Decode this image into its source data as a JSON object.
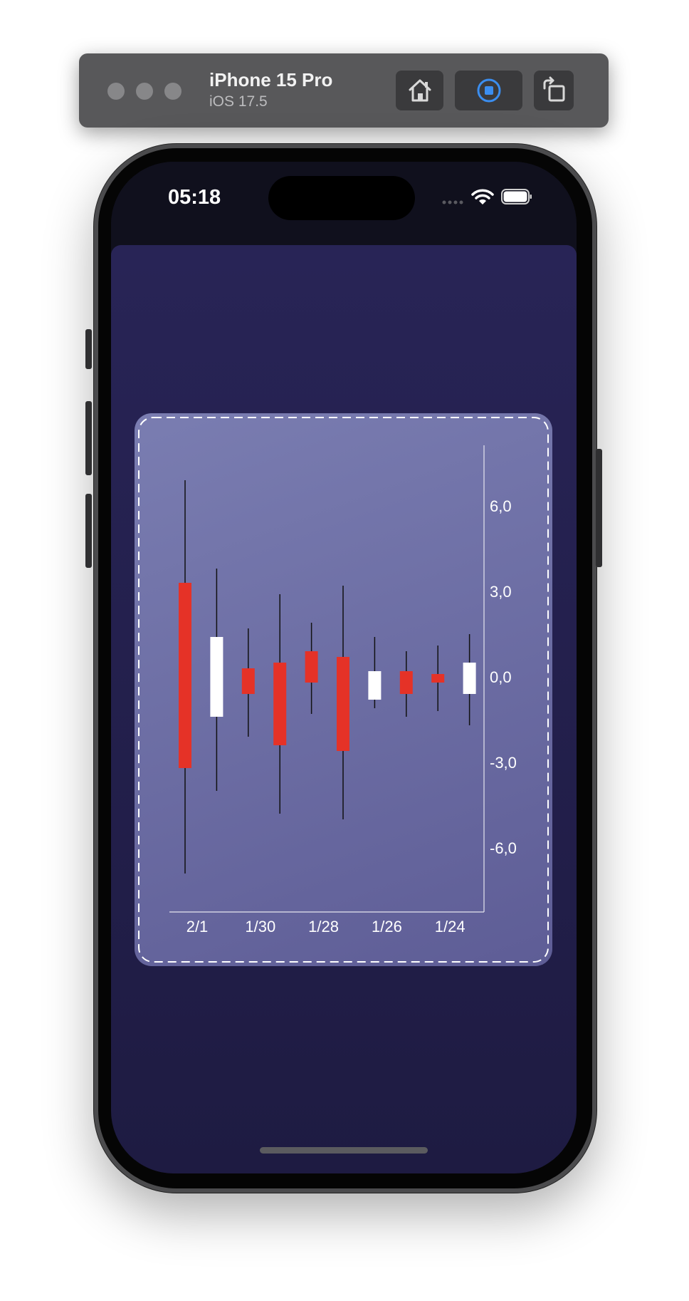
{
  "simulator": {
    "device_name": "iPhone 15 Pro",
    "os_version": "iOS 17.5",
    "icons": [
      "home-icon",
      "screenshot-icon",
      "rotate-icon"
    ]
  },
  "status_bar": {
    "time": "05:18",
    "icons": [
      "signal-icon",
      "wifi-icon",
      "battery-icon"
    ]
  },
  "colors": {
    "card": "#6d6ea6",
    "bearish": "#e53227",
    "bullish": "#ffffff",
    "sheet": "#25224f"
  },
  "chart_data": {
    "type": "candlestick",
    "yticks": [
      "6,0",
      "3,0",
      "0,0",
      "-3,0",
      "-6,0"
    ],
    "ytick_values": [
      6,
      3,
      0,
      -3,
      -6
    ],
    "ylim": [
      -8.2,
      8.3
    ],
    "xtick_labels": [
      "2/1",
      "1/30",
      "1/28",
      "1/26",
      "1/24"
    ],
    "grid": false,
    "candles": [
      {
        "open": 3.3,
        "close": -3.2,
        "high": 6.9,
        "low": -6.9,
        "color": "red"
      },
      {
        "open": -1.4,
        "close": 1.4,
        "high": 3.8,
        "low": -4.0,
        "color": "white"
      },
      {
        "open": 0.3,
        "close": -0.6,
        "high": 1.7,
        "low": -2.1,
        "color": "red"
      },
      {
        "open": 0.5,
        "close": -2.4,
        "high": 2.9,
        "low": -4.8,
        "color": "red"
      },
      {
        "open": 0.9,
        "close": -0.2,
        "high": 1.9,
        "low": -1.3,
        "color": "red"
      },
      {
        "open": 0.7,
        "close": -2.6,
        "high": 3.2,
        "low": -5.0,
        "color": "red"
      },
      {
        "open": -0.8,
        "close": 0.2,
        "high": 1.4,
        "low": -1.1,
        "color": "white"
      },
      {
        "open": 0.2,
        "close": -0.6,
        "high": 0.9,
        "low": -1.4,
        "color": "red"
      },
      {
        "open": 0.1,
        "close": -0.2,
        "high": 1.1,
        "low": -1.2,
        "color": "red"
      },
      {
        "open": -0.6,
        "close": 0.5,
        "high": 1.5,
        "low": -1.7,
        "color": "white"
      }
    ]
  }
}
